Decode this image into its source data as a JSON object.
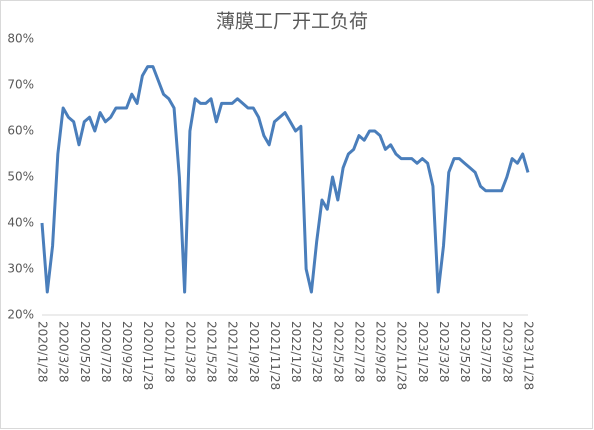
{
  "chart_data": {
    "type": "line",
    "title": "薄膜工厂开工负荷",
    "categories": [
      "2020/1/28",
      null,
      null,
      null,
      "2020/3/28",
      null,
      null,
      null,
      "2020/5/28",
      null,
      null,
      null,
      "2020/7/28",
      null,
      null,
      null,
      "2020/9/28",
      null,
      null,
      null,
      "2020/11/28",
      null,
      null,
      null,
      "2021/1/28",
      null,
      null,
      null,
      "2021/3/28",
      null,
      null,
      null,
      "2021/5/28",
      null,
      null,
      null,
      "2021/7/28",
      null,
      null,
      null,
      "2021/9/28",
      null,
      null,
      null,
      "2021/11/28",
      null,
      null,
      null,
      "2022/1/28",
      null,
      null,
      null,
      "2022/3/28",
      null,
      null,
      null,
      "2022/5/28",
      null,
      null,
      null,
      "2022/7/28",
      null,
      null,
      null,
      "2022/9/28",
      null,
      null,
      null,
      "2022/11/28",
      null,
      null,
      null,
      "2023/1/28",
      null,
      null,
      null,
      "2023/3/28",
      null,
      null,
      null,
      "2023/5/28",
      null,
      null,
      null,
      "2023/7/28",
      null,
      null,
      null,
      "2023/9/28",
      null,
      null,
      null,
      "2023/11/28"
    ],
    "values": [
      40,
      25,
      35,
      55,
      65,
      63,
      62,
      57,
      62,
      63,
      60,
      64,
      62,
      63,
      65,
      65,
      65,
      68,
      66,
      72,
      74,
      74,
      71,
      68,
      67,
      65,
      50,
      25,
      60,
      67,
      66,
      66,
      67,
      62,
      66,
      66,
      66,
      67,
      66,
      65,
      65,
      63,
      59,
      57,
      62,
      63,
      64,
      62,
      60,
      61,
      30,
      25,
      36,
      45,
      43,
      50,
      45,
      52,
      55,
      56,
      59,
      58,
      60,
      60,
      59,
      56,
      57,
      55,
      54,
      54,
      54,
      53,
      54,
      53,
      48,
      25,
      35,
      51,
      54,
      54,
      53,
      52,
      51,
      48,
      47,
      47,
      47,
      47,
      50,
      54,
      53,
      55,
      51
    ],
    "color": "#4a7ebb",
    "ylim": [
      20,
      80
    ],
    "yticks": [
      {
        "value": 20,
        "label": "20%"
      },
      {
        "value": 30,
        "label": "30%"
      },
      {
        "value": 40,
        "label": "40%"
      },
      {
        "value": 50,
        "label": "50%"
      },
      {
        "value": 60,
        "label": "60%"
      },
      {
        "value": 70,
        "label": "70%"
      },
      {
        "value": 80,
        "label": "80%"
      }
    ],
    "grid": false
  }
}
